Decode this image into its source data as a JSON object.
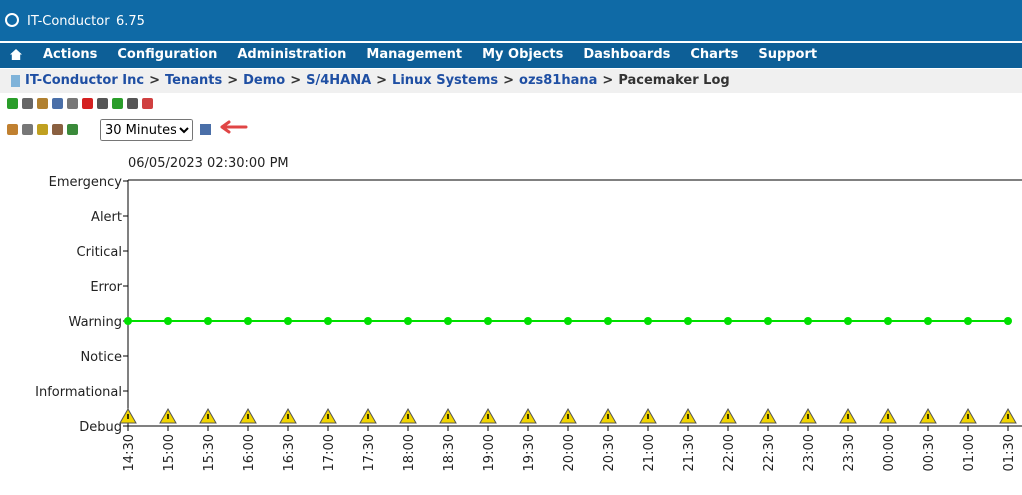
{
  "header": {
    "title": "IT-Conductor",
    "version": "6.75"
  },
  "menu": [
    "Actions",
    "Configuration",
    "Administration",
    "Management",
    "My Objects",
    "Dashboards",
    "Charts",
    "Support"
  ],
  "breadcrumb": {
    "links": [
      "IT-Conductor Inc",
      "Tenants",
      "Demo",
      "S/4HANA",
      "Linux Systems",
      "ozs81hana"
    ],
    "separator": ">",
    "current": "Pacemaker Log"
  },
  "interval": "30 Minutes",
  "chart": {
    "type": "line",
    "timestamp": "06/05/2023 02:30:00 PM",
    "levels": [
      "Emergency",
      "Alert",
      "Critical",
      "Error",
      "Warning",
      "Notice",
      "Informational",
      "Debug"
    ],
    "x": [
      "14:30",
      "15:00",
      "15:30",
      "16:00",
      "16:30",
      "17:00",
      "17:30",
      "18:00",
      "18:30",
      "19:00",
      "19:30",
      "20:00",
      "20:30",
      "21:00",
      "21:30",
      "22:00",
      "22:30",
      "23:00",
      "23:30",
      "00:00",
      "00:30",
      "01:00",
      "01:30"
    ],
    "series": [
      {
        "color": "#00e000",
        "values": [
          "Warning",
          "Warning",
          "Warning",
          "Warning",
          "Warning",
          "Warning",
          "Warning",
          "Warning",
          "Warning",
          "Warning",
          "Warning",
          "Warning",
          "Warning",
          "Warning",
          "Warning",
          "Warning",
          "Warning",
          "Warning",
          "Warning",
          "Warning",
          "Warning",
          "Warning",
          "Warning"
        ]
      },
      {
        "color": "#f2d600",
        "values": [
          "Debug",
          "Debug",
          "Debug",
          "Debug",
          "Debug",
          "Debug",
          "Debug",
          "Debug",
          "Debug",
          "Debug",
          "Debug",
          "Debug",
          "Debug",
          "Debug",
          "Debug",
          "Debug",
          "Debug",
          "Debug",
          "Debug",
          "Debug",
          "Debug",
          "Debug",
          "Debug"
        ]
      }
    ]
  }
}
